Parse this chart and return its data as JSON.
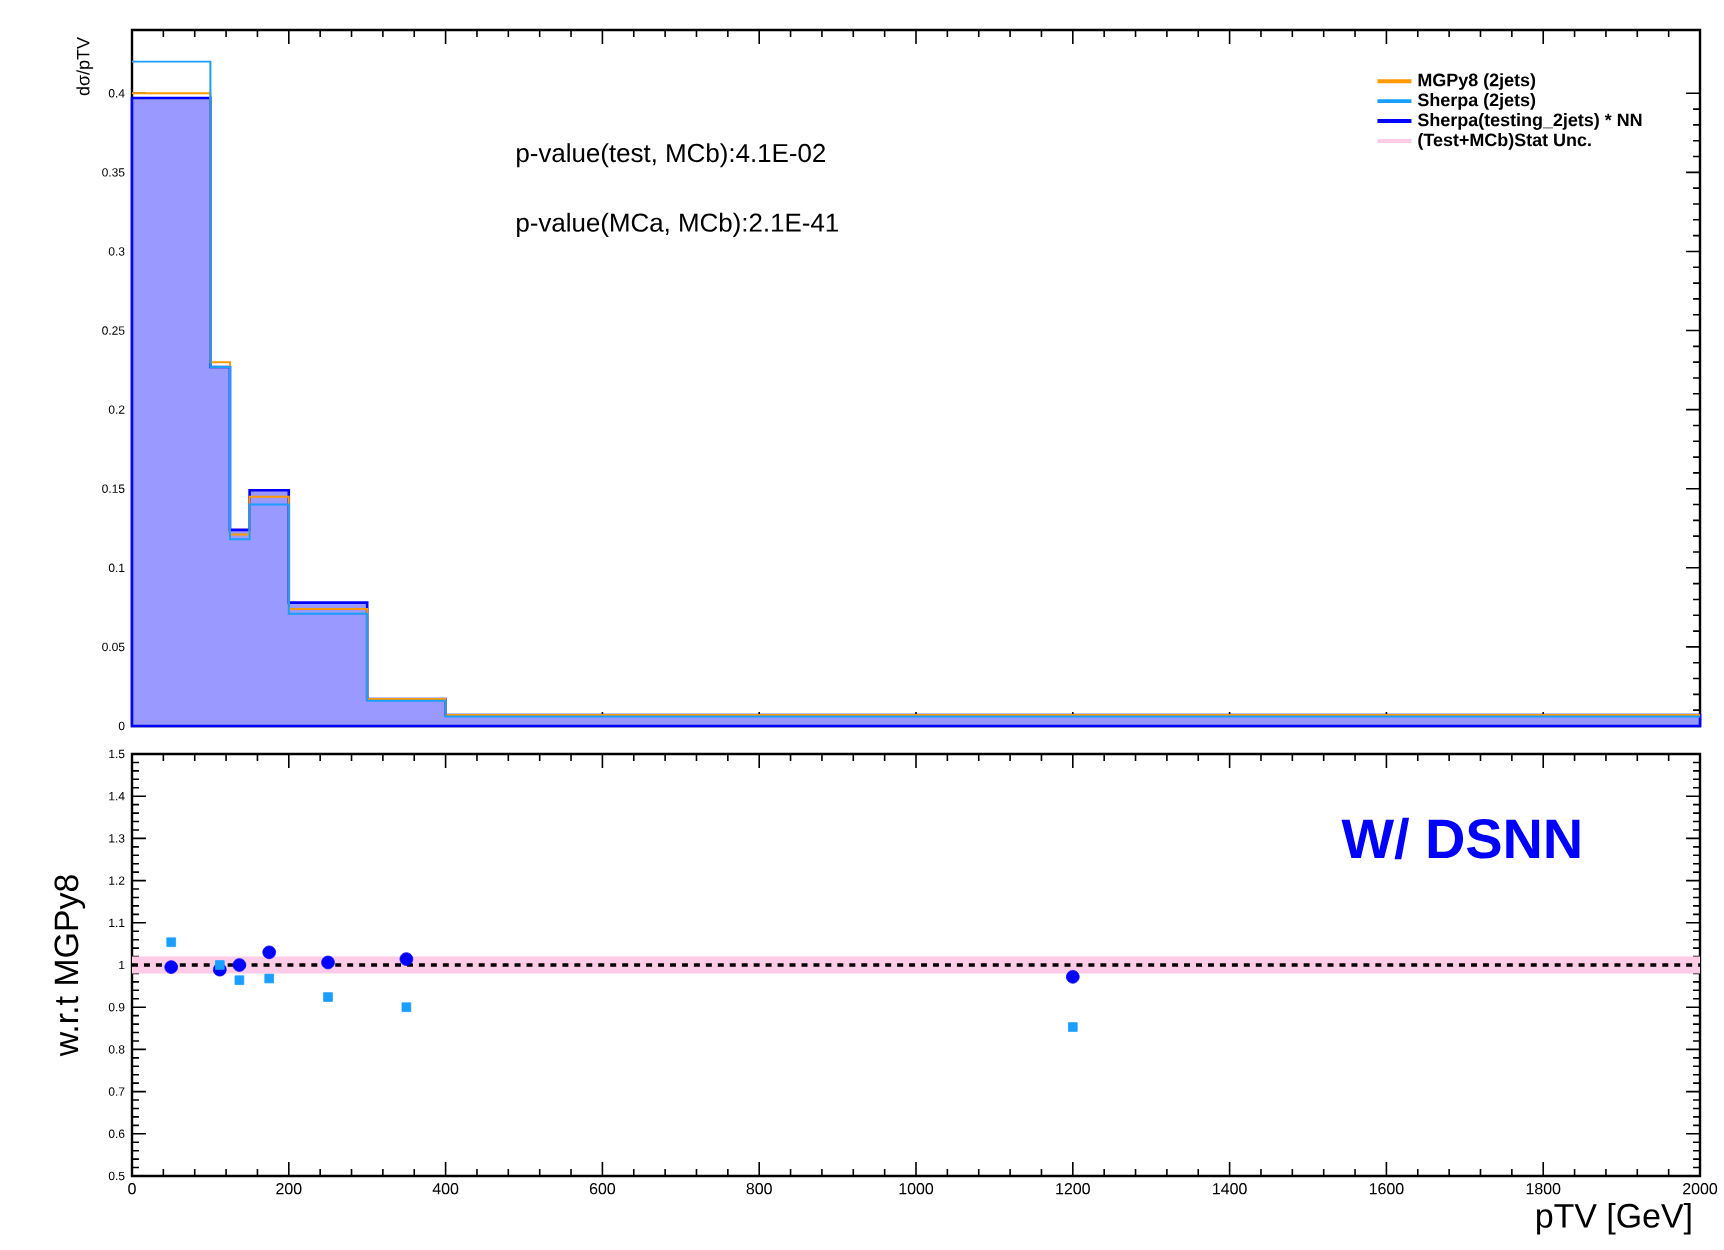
{
  "chart_data": [
    {
      "type": "histogram",
      "ylabel": "dσ/pTV",
      "bins": [
        0,
        100,
        125,
        150,
        200,
        300,
        400,
        2000
      ],
      "series": [
        {
          "name": "MGPy8 (2jets)",
          "color": "#ff9900",
          "values": [
            0.4,
            0.23,
            0.121,
            0.145,
            0.074,
            0.017,
            0.007
          ]
        },
        {
          "name": "Sherpa (2jets)",
          "color": "#1a9fff",
          "values": [
            0.42,
            0.227,
            0.118,
            0.14,
            0.071,
            0.016,
            0.006
          ]
        },
        {
          "name": "Sherpa(testing_2jets) * NN",
          "color": "#0000ff",
          "values": [
            0.397,
            0.227,
            0.124,
            0.149,
            0.078,
            0.017,
            0.007
          ]
        }
      ],
      "xlim": [
        0,
        2000
      ],
      "ylim": [
        0,
        0.44
      ],
      "xticks": [
        0,
        200,
        400,
        600,
        800,
        1000,
        1200,
        1400,
        1600,
        1800,
        2000
      ],
      "yticks": [
        0,
        0.05,
        0.1,
        0.15,
        0.2,
        0.25,
        0.3,
        0.35,
        0.4
      ],
      "tick_labels": "y",
      "legend": "top right",
      "annotations": [
        "p-value(test, MCb):4.1E-02",
        "p-value(MCa, MCb):2.1E-41"
      ]
    },
    {
      "type": "scatter",
      "xlabel": "pTV [GeV]",
      "ylabel": "w.r.t MGPy8",
      "x": [
        50,
        112,
        137,
        175,
        250,
        350,
        1200
      ],
      "series": [
        {
          "color": "#1a9fff",
          "marker": "square",
          "values": [
            1.054,
            1.0,
            0.964,
            0.968,
            0.924,
            0.9,
            0.853
          ]
        },
        {
          "color": "#0000ff",
          "marker": "circle",
          "values": [
            0.995,
            0.989,
            1.0,
            1.03,
            1.006,
            1.014,
            0.972
          ]
        }
      ],
      "xlim": [
        0,
        2000
      ],
      "ylim": [
        0.5,
        1.5
      ],
      "xticks": [
        0,
        200,
        400,
        600,
        800,
        1000,
        1200,
        1400,
        1600,
        1800,
        2000
      ],
      "yticks": [
        0.5,
        0.6,
        0.7,
        0.8,
        0.9,
        1,
        1.1,
        1.2,
        1.3,
        1.4,
        1.5
      ],
      "ref_lines": [
        {
          "axis": "y",
          "value": 1,
          "color": "#000000",
          "line_style": "dashed"
        }
      ],
      "bands": [
        {
          "axis": "y",
          "from": 0.98,
          "to": 1.02,
          "label": "(Test+MCb)Stat Unc.",
          "color": "#ffcce8"
        }
      ],
      "annotations": [
        "W/ DSNN"
      ]
    }
  ]
}
